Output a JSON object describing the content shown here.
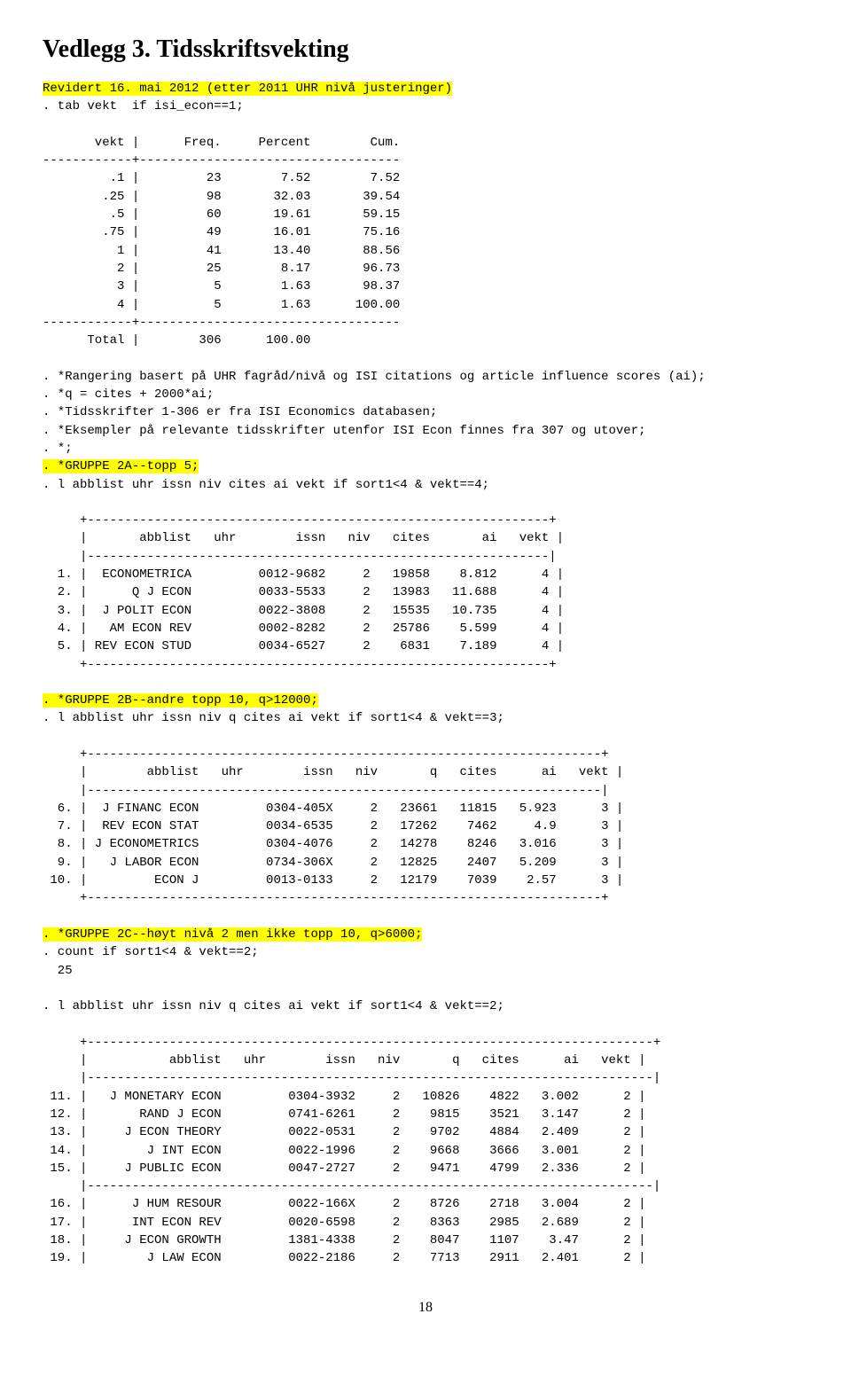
{
  "title": "Vedlegg 3. Tidsskriftsvekting",
  "revised_line": "Revidert 16. mai 2012 (etter 2011 UHR nivå justeringer)",
  "tab_line": ". tab vekt  if isi_econ==1;",
  "freq_table": {
    "header": "       vekt |      Freq.     Percent        Cum.",
    "sep": "------------+-----------------------------------",
    "rows": [
      "         .1 |         23        7.52        7.52",
      "        .25 |         98       32.03       39.54",
      "         .5 |         60       19.61       59.15",
      "        .75 |         49       16.01       75.16",
      "          1 |         41       13.40       88.56",
      "          2 |         25        8.17       96.73",
      "          3 |          5        1.63       98.37",
      "          4 |          5        1.63      100.00"
    ],
    "total": "      Total |        306      100.00"
  },
  "notes": [
    ". *Rangering basert på UHR fagråd/nivå og ISI citations og article influence scores (ai);",
    ". *q = cites + 2000*ai;",
    ". *Tidsskrifter 1-306 er fra ISI Economics databasen;",
    ". *Eksempler på relevante tidsskrifter utenfor ISI Econ finnes fra 307 og utover;",
    ". *;"
  ],
  "group2a_hl": ". *GRUPPE 2A--topp 5;",
  "group2a_cmd": ". l abblist uhr issn niv cites ai vekt if sort1<4 & vekt==4;",
  "table2a": {
    "border": "     +--------------------------------------------------------------+",
    "header": "     |       abblist   uhr        issn   niv   cites       ai   vekt |",
    "sep": "     |--------------------------------------------------------------|",
    "rows": [
      "  1. |  ECONOMETRICA         0012-9682     2   19858    8.812      4 |",
      "  2. |      Q J ECON         0033-5533     2   13983   11.688      4 |",
      "  3. |  J POLIT ECON         0022-3808     2   15535   10.735      4 |",
      "  4. |   AM ECON REV         0002-8282     2   25786    5.599      4 |",
      "  5. | REV ECON STUD         0034-6527     2    6831    7.189      4 |"
    ]
  },
  "group2b_hl": ". *GRUPPE 2B--andre topp 10, q>12000;",
  "group2b_cmd": ". l abblist uhr issn niv q cites ai vekt if sort1<4 & vekt==3;",
  "table2b": {
    "border": "     +---------------------------------------------------------------------+",
    "header": "     |        abblist   uhr        issn   niv       q   cites      ai   vekt |",
    "sep": "     |---------------------------------------------------------------------|",
    "rows": [
      "  6. |  J FINANC ECON         0304-405X     2   23661   11815   5.923      3 |",
      "  7. |  REV ECON STAT         0034-6535     2   17262    7462     4.9      3 |",
      "  8. | J ECONOMETRICS         0304-4076     2   14278    8246   3.016      3 |",
      "  9. |   J LABOR ECON         0734-306X     2   12825    2407   5.209      3 |",
      " 10. |         ECON J         0013-0133     2   12179    7039    2.57      3 |"
    ]
  },
  "group2c_hl": ". *GRUPPE 2C--høyt nivå 2 men ikke topp 10, q>6000;",
  "group2c_cmd1": ". count if sort1<4 & vekt==2;",
  "group2c_count": "  25",
  "group2c_cmd2": ". l abblist uhr issn niv q cites ai vekt if sort1<4 & vekt==2;",
  "table2c": {
    "border": "     +----------------------------------------------------------------------------+",
    "header": "     |           abblist   uhr        issn   niv       q   cites      ai   vekt |",
    "sep": "     |----------------------------------------------------------------------------|",
    "rows1": [
      " 11. |   J MONETARY ECON         0304-3932     2   10826    4822   3.002      2 |",
      " 12. |       RAND J ECON         0741-6261     2    9815    3521   3.147      2 |",
      " 13. |     J ECON THEORY         0022-0531     2    9702    4884   2.409      2 |",
      " 14. |        J INT ECON         0022-1996     2    9668    3666   3.001      2 |",
      " 15. |     J PUBLIC ECON         0047-2727     2    9471    4799   2.336      2 |"
    ],
    "rows2": [
      " 16. |      J HUM RESOUR         0022-166X     2    8726    2718   3.004      2 |",
      " 17. |      INT ECON REV         0020-6598     2    8363    2985   2.689      2 |",
      " 18. |     J ECON GROWTH         1381-4338     2    8047    1107    3.47      2 |",
      " 19. |        J LAW ECON         0022-2186     2    7713    2911   2.401      2 |"
    ]
  },
  "page_number": "18"
}
